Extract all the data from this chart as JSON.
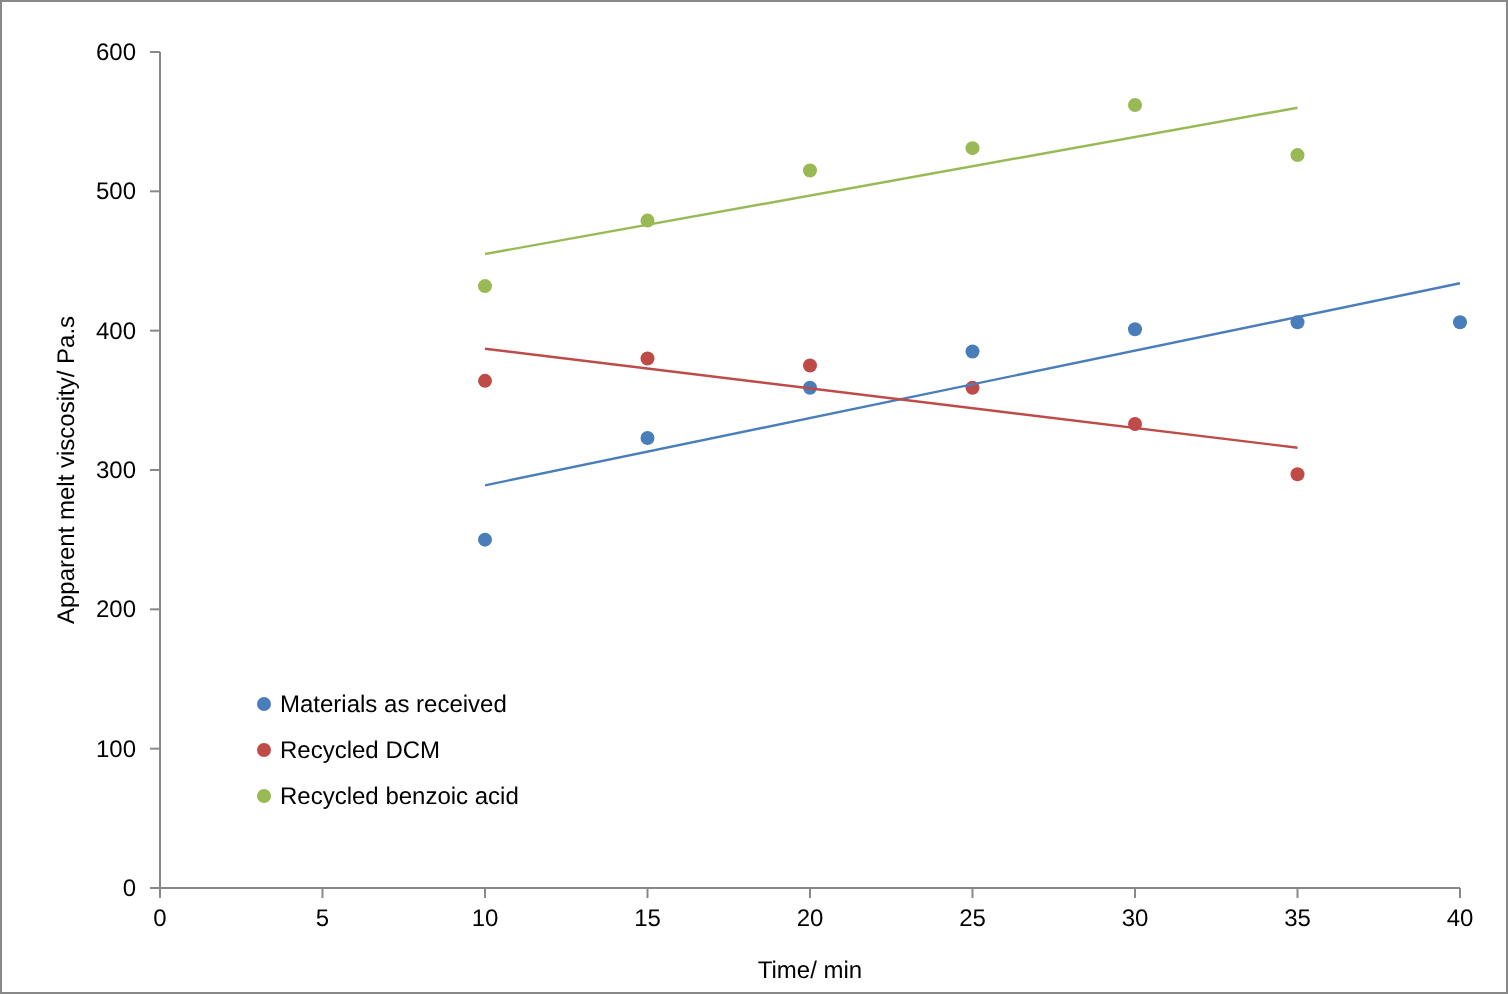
{
  "chart_data": {
    "type": "scatter",
    "xlabel": "Time/ min",
    "ylabel": "Apparent melt viscosity/ Pa.s",
    "xlim": [
      0,
      40
    ],
    "xticks": [
      0,
      5,
      10,
      15,
      20,
      25,
      30,
      35,
      40
    ],
    "ylim": [
      0,
      600
    ],
    "yticks": [
      0,
      100,
      200,
      300,
      400,
      500,
      600
    ],
    "grid": false,
    "legend": "bottom left",
    "marker": "circle",
    "series": [
      {
        "name": "Materials as received",
        "color": "#4a7ebb",
        "x": [
          10,
          15,
          20,
          25,
          30,
          35,
          40
        ],
        "values": [
          250,
          323,
          359,
          385,
          401,
          406,
          406
        ]
      },
      {
        "name": "Recycled DCM",
        "color": "#be4b48",
        "x": [
          10,
          15,
          20,
          25,
          30,
          35
        ],
        "values": [
          364,
          380,
          375,
          359,
          333,
          297
        ]
      },
      {
        "name": "Recycled benzoic acid",
        "color": "#98b954",
        "x": [
          10,
          15,
          20,
          25,
          30,
          35
        ],
        "values": [
          432,
          479,
          515,
          531,
          562,
          526
        ]
      },
      {
        "type": "line",
        "marker": "none",
        "color": "#4a7ebb",
        "x": [
          10,
          40
        ],
        "values": [
          289,
          434
        ]
      },
      {
        "type": "line",
        "marker": "none",
        "color": "#be4b48",
        "x": [
          10,
          35
        ],
        "values": [
          387,
          316
        ]
      },
      {
        "type": "line",
        "marker": "none",
        "color": "#98b954",
        "x": [
          10,
          35
        ],
        "values": [
          455,
          560
        ]
      }
    ]
  }
}
